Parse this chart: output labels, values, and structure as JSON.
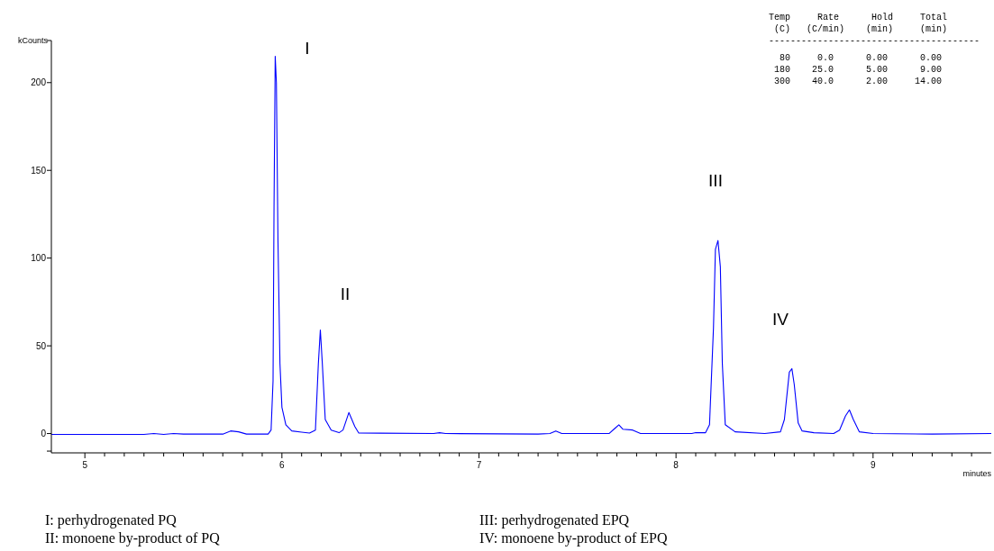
{
  "chart_data": {
    "type": "line",
    "ylabel": "kCounts",
    "xlabel": "minutes",
    "x": [
      4.83,
      5.3,
      5.35,
      5.4,
      5.45,
      5.5,
      5.7,
      5.74,
      5.78,
      5.82,
      5.93,
      5.945,
      5.955,
      5.96,
      5.966,
      5.972,
      5.98,
      5.99,
      6.0,
      6.02,
      6.05,
      6.1,
      6.14,
      6.17,
      6.185,
      6.195,
      6.205,
      6.22,
      6.25,
      6.29,
      6.31,
      6.34,
      6.37,
      6.39,
      6.5,
      6.77,
      6.8,
      6.83,
      7.3,
      7.36,
      7.39,
      7.42,
      7.66,
      7.69,
      7.71,
      7.73,
      7.78,
      7.82,
      8.08,
      8.1,
      8.15,
      8.17,
      8.19,
      8.2,
      8.213,
      8.225,
      8.235,
      8.25,
      8.3,
      8.45,
      8.53,
      8.55,
      8.575,
      8.588,
      8.6,
      8.62,
      8.64,
      8.7,
      8.8,
      8.83,
      8.86,
      8.88,
      8.9,
      8.93,
      9.0,
      9.3,
      9.6
    ],
    "series": [
      {
        "color": "#0000ff",
        "values": [
          -0.5,
          -0.5,
          0,
          -0.5,
          0,
          -0.3,
          -0.3,
          1.5,
          1,
          -0.3,
          -0.3,
          2,
          30,
          130,
          215,
          200,
          110,
          40,
          15,
          5,
          1.5,
          0.8,
          0.3,
          2,
          40,
          59,
          40,
          8,
          2,
          0.5,
          2,
          12,
          4,
          0.3,
          0.2,
          0,
          0.5,
          0,
          -0.3,
          0,
          1.5,
          0,
          0,
          3,
          5,
          2.5,
          2,
          0,
          0,
          0.5,
          0.5,
          5,
          60,
          105,
          110,
          95,
          40,
          5,
          1,
          0,
          1,
          8,
          35,
          37,
          28,
          6,
          1.5,
          0.5,
          0,
          2,
          10,
          13.5,
          8,
          1,
          0,
          -0.3,
          0
        ]
      }
    ],
    "xlim": [
      4.83,
      9.6
    ],
    "ylim": [
      -11,
      224
    ],
    "xticks": [
      5,
      {
        "value": 5.1,
        "label": null
      },
      {
        "value": 5.2,
        "label": null
      },
      {
        "value": 5.3,
        "label": null
      },
      {
        "value": 5.4,
        "label": null
      },
      {
        "value": 5.5,
        "label": null
      },
      {
        "value": 5.6,
        "label": null
      },
      {
        "value": 5.7,
        "label": null
      },
      {
        "value": 5.8,
        "label": null
      },
      {
        "value": 5.9,
        "label": null
      },
      6,
      {
        "value": 6.1,
        "label": null
      },
      {
        "value": 6.2,
        "label": null
      },
      {
        "value": 6.3,
        "label": null
      },
      {
        "value": 6.4,
        "label": null
      },
      {
        "value": 6.5,
        "label": null
      },
      {
        "value": 6.6,
        "label": null
      },
      {
        "value": 6.7,
        "label": null
      },
      {
        "value": 6.8,
        "label": null
      },
      {
        "value": 6.9,
        "label": null
      },
      7,
      {
        "value": 7.1,
        "label": null
      },
      {
        "value": 7.2,
        "label": null
      },
      {
        "value": 7.3,
        "label": null
      },
      {
        "value": 7.4,
        "label": null
      },
      {
        "value": 7.5,
        "label": null
      },
      {
        "value": 7.6,
        "label": null
      },
      {
        "value": 7.7,
        "label": null
      },
      {
        "value": 7.8,
        "label": null
      },
      {
        "value": 7.9,
        "label": null
      },
      8,
      {
        "value": 8.1,
        "label": null
      },
      {
        "value": 8.2,
        "label": null
      },
      {
        "value": 8.3,
        "label": null
      },
      {
        "value": 8.4,
        "label": null
      },
      {
        "value": 8.5,
        "label": null
      },
      {
        "value": 8.6,
        "label": null
      },
      {
        "value": 8.7,
        "label": null
      },
      {
        "value": 8.8,
        "label": null
      },
      {
        "value": 8.9,
        "label": null
      },
      9,
      {
        "value": 9.1,
        "label": null
      },
      {
        "value": 9.2,
        "label": null
      },
      {
        "value": 9.3,
        "label": null
      },
      {
        "value": 9.4,
        "label": null
      },
      {
        "value": 9.5,
        "label": null
      }
    ],
    "yticks": [
      {
        "value": -10,
        "label": null
      },
      0,
      50,
      100,
      150,
      200
    ],
    "grid": false,
    "marker": "none",
    "line_style": "solid",
    "annotations": [
      "I",
      "II",
      "III",
      "IV",
      "Temp     Rate      Hold     Total\n (C)   (C/min)    (min)     (min)\n---------------------------------------\n  80     0.0      0.00      0.00\n 180    25.0      5.00      9.00\n 300    40.0      2.00     14.00",
      "I: perhydrogenated PQ",
      "II: monoene by-product of PQ",
      "III: perhydrogenated EPQ",
      "IV: monoene by-product of EPQ"
    ]
  }
}
